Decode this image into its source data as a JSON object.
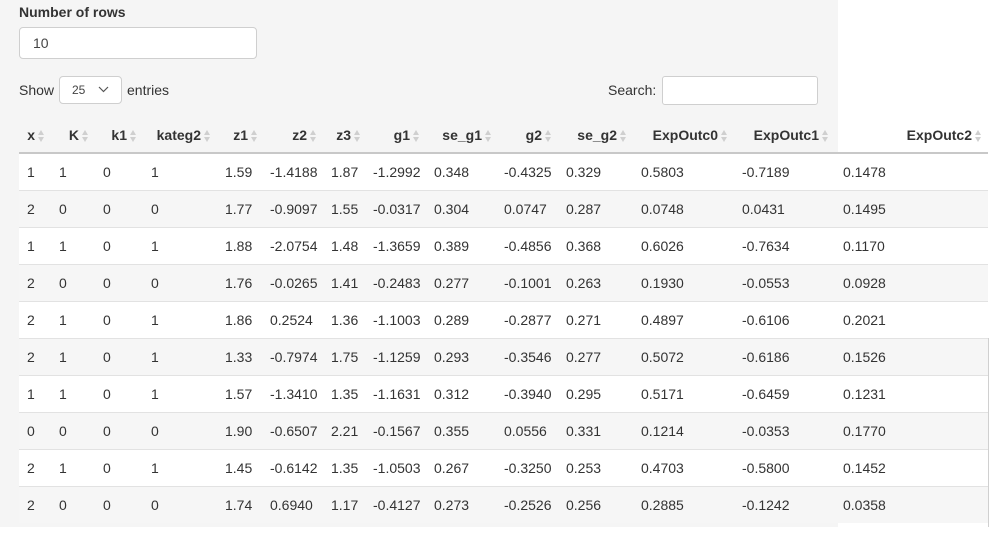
{
  "controls": {
    "rows_label": "Number of rows",
    "rows_value": "10",
    "show_label": "Show",
    "page_size": "25",
    "entries_label": "entries",
    "search_label": "Search:",
    "search_value": ""
  },
  "table": {
    "columns": [
      "x",
      "K",
      "k1",
      "kateg2",
      "z1",
      "z2",
      "z3",
      "g1",
      "se_g1",
      "g2",
      "se_g2",
      "ExpOutc0",
      "ExpOutc1",
      "ExpOutc2"
    ],
    "rows": [
      [
        "1",
        "1",
        "0",
        "1",
        "1.59",
        "-1.4188",
        "1.87",
        "-1.2992",
        "0.348",
        "-0.4325",
        "0.329",
        "0.5803",
        "-0.7189",
        "0.1478"
      ],
      [
        "2",
        "0",
        "0",
        "0",
        "1.77",
        "-0.9097",
        "1.55",
        "-0.0317",
        "0.304",
        "0.0747",
        "0.287",
        "0.0748",
        "0.0431",
        "0.1495"
      ],
      [
        "1",
        "1",
        "0",
        "1",
        "1.88",
        "-2.0754",
        "1.48",
        "-1.3659",
        "0.389",
        "-0.4856",
        "0.368",
        "0.6026",
        "-0.7634",
        "0.1170"
      ],
      [
        "2",
        "0",
        "0",
        "0",
        "1.76",
        "-0.0265",
        "1.41",
        "-0.2483",
        "0.277",
        "-0.1001",
        "0.263",
        "0.1930",
        "-0.0553",
        "0.0928"
      ],
      [
        "2",
        "1",
        "0",
        "1",
        "1.86",
        "0.2524",
        "1.36",
        "-1.1003",
        "0.289",
        "-0.2877",
        "0.271",
        "0.4897",
        "-0.6106",
        "0.2021"
      ],
      [
        "2",
        "1",
        "0",
        "1",
        "1.33",
        "-0.7974",
        "1.75",
        "-1.1259",
        "0.293",
        "-0.3546",
        "0.277",
        "0.5072",
        "-0.6186",
        "0.1526"
      ],
      [
        "1",
        "1",
        "0",
        "1",
        "1.57",
        "-1.3410",
        "1.35",
        "-1.1631",
        "0.312",
        "-0.3940",
        "0.295",
        "0.5171",
        "-0.6459",
        "0.1231"
      ],
      [
        "0",
        "0",
        "0",
        "0",
        "1.90",
        "-0.6507",
        "2.21",
        "-0.1567",
        "0.355",
        "0.0556",
        "0.331",
        "0.1214",
        "-0.0353",
        "0.1770"
      ],
      [
        "2",
        "1",
        "0",
        "1",
        "1.45",
        "-0.6142",
        "1.35",
        "-1.0503",
        "0.267",
        "-0.3250",
        "0.253",
        "0.4703",
        "-0.5800",
        "0.1452"
      ],
      [
        "2",
        "0",
        "0",
        "0",
        "1.74",
        "0.6940",
        "1.17",
        "-0.4127",
        "0.273",
        "-0.2526",
        "0.256",
        "0.2885",
        "-0.1242",
        "0.0358"
      ]
    ]
  },
  "icons": {
    "sort": "sort-both-icon",
    "dropdown": "chevron-down-icon"
  },
  "colors": {
    "panel_bg": "#f5f5f5",
    "border": "#cfcfcf",
    "text": "#333333"
  }
}
